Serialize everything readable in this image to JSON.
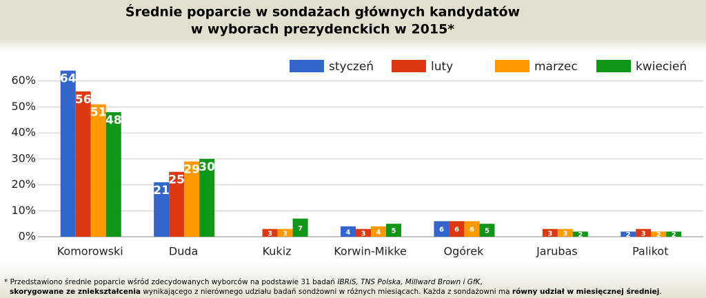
{
  "chart_data": {
    "type": "bar",
    "title": [
      "Średnie poparcie w sondażach głównych kandydatów",
      "w wyborach prezydenckich w 2015*"
    ],
    "categories": [
      "Komorowski",
      "Duda",
      "Kukiz",
      "Korwin-Mikke",
      "Ogórek",
      "Jarubas",
      "Palikot"
    ],
    "series": [
      {
        "name": "styczeń",
        "color": "#3366cc",
        "values": [
          64,
          21,
          null,
          4,
          6,
          null,
          2
        ]
      },
      {
        "name": "luty",
        "color": "#dc3912",
        "values": [
          56,
          25,
          3,
          3,
          6,
          3,
          3
        ]
      },
      {
        "name": "marzec",
        "color": "#ff9900",
        "values": [
          51,
          29,
          3,
          4,
          6,
          3,
          2
        ]
      },
      {
        "name": "kwiecień",
        "color": "#109618",
        "values": [
          48,
          30,
          7,
          5,
          5,
          2,
          2
        ]
      }
    ],
    "ylim": [
      0,
      70
    ],
    "yticks": [
      {
        "value": 0,
        "label": "0%"
      },
      {
        "value": 10,
        "label": "10%"
      },
      {
        "value": 20,
        "label": "20%"
      },
      {
        "value": 30,
        "label": "30%"
      },
      {
        "value": 40,
        "label": "40%"
      },
      {
        "value": 50,
        "label": "50%"
      },
      {
        "value": 60,
        "label": "60%"
      }
    ],
    "grid": true,
    "footnote": {
      "line1": [
        "* Przedstawiono średnie poparcie wśród zdecydowanych wyborców na podstawie 31 badań ",
        "IBRiS, TNS Polska, Millward Brown i GfK",
        ","
      ],
      "line2": [
        "skorygowane ze zniekształcenia",
        " wynikającego z nierównego udziału badań sondżowni w różnych miesiącach. Każda z sondażowni ma ",
        "równy udział w miesięcznej średniej",
        "."
      ]
    }
  }
}
